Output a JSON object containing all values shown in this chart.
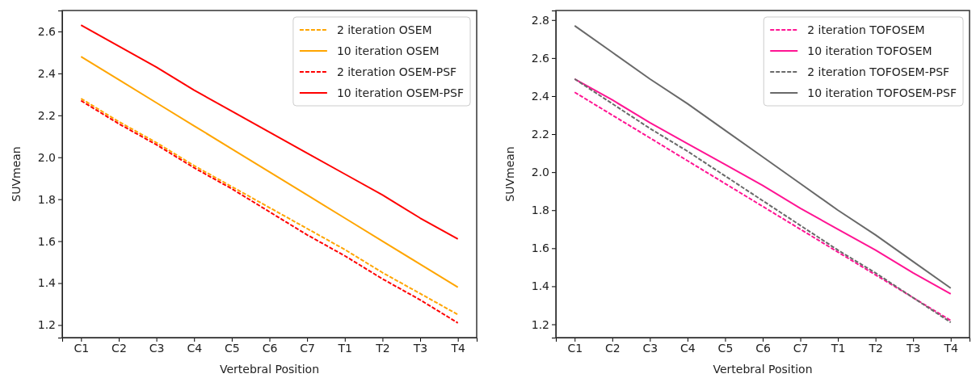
{
  "chart_data": [
    {
      "type": "line",
      "xlabel": "Vertebral Position",
      "ylabel": "SUVmean",
      "legend": "top right",
      "categories": [
        "C1",
        "C2",
        "C3",
        "C4",
        "C5",
        "C6",
        "C7",
        "T1",
        "T2",
        "T3",
        "T4"
      ],
      "ylim": [
        1.14,
        2.7
      ],
      "yticks": [
        1.2,
        1.4,
        1.6,
        1.8,
        {
          "value": 2,
          "label": "2.0"
        },
        2.2,
        2.4,
        2.6
      ],
      "series": [
        {
          "name": "2 iteration OSEM",
          "color": "#ffa500",
          "line_style": "dashed",
          "values": [
            2.28,
            2.17,
            2.07,
            1.96,
            1.86,
            1.76,
            1.66,
            1.56,
            1.45,
            1.35,
            1.25
          ]
        },
        {
          "name": "10 iteration OSEM",
          "color": "#ffa500",
          "line_style": "solid",
          "values": [
            2.48,
            2.37,
            2.26,
            2.15,
            2.04,
            1.93,
            1.82,
            1.71,
            1.6,
            1.49,
            1.38
          ]
        },
        {
          "name": "2 iteration OSEM-PSF",
          "color": "#ff0000",
          "line_style": "dashed",
          "values": [
            2.27,
            2.16,
            2.06,
            1.95,
            1.85,
            1.74,
            1.63,
            1.53,
            1.42,
            1.32,
            1.21
          ]
        },
        {
          "name": "10 iteration OSEM-PSF",
          "color": "#ff0000",
          "line_style": "solid",
          "values": [
            2.63,
            2.53,
            2.43,
            2.32,
            2.22,
            2.12,
            2.02,
            1.92,
            1.82,
            1.71,
            1.61
          ]
        }
      ]
    },
    {
      "type": "line",
      "xlabel": "Vertebral Position",
      "ylabel": "SUVmean",
      "legend": "top right",
      "categories": [
        "C1",
        "C2",
        "C3",
        "C4",
        "C5",
        "C6",
        "C7",
        "T1",
        "T2",
        "T3",
        "T4"
      ],
      "ylim": [
        1.13,
        2.85
      ],
      "yticks": [
        1.2,
        1.4,
        1.6,
        1.8,
        {
          "value": 2,
          "label": "2.0"
        },
        2.2,
        2.4,
        2.6,
        2.8
      ],
      "series": [
        {
          "name": "2 iteration TOFOSEM",
          "color": "#ff1493",
          "line_style": "dashed",
          "values": [
            2.42,
            2.3,
            2.18,
            2.06,
            1.94,
            1.82,
            1.7,
            1.58,
            1.46,
            1.34,
            1.22
          ]
        },
        {
          "name": "10 iteration TOFOSEM",
          "color": "#ff1493",
          "line_style": "solid",
          "values": [
            2.49,
            2.38,
            2.26,
            2.15,
            2.04,
            1.93,
            1.81,
            1.7,
            1.59,
            1.47,
            1.36
          ]
        },
        {
          "name": "2 iteration TOFOSEM-PSF",
          "color": "#696969",
          "line_style": "dashed",
          "values": [
            2.49,
            2.36,
            2.23,
            2.11,
            1.98,
            1.85,
            1.72,
            1.59,
            1.47,
            1.34,
            1.21
          ]
        },
        {
          "name": "10 iteration TOFOSEM-PSF",
          "color": "#696969",
          "line_style": "solid",
          "values": [
            2.77,
            2.63,
            2.49,
            2.36,
            2.22,
            2.08,
            1.94,
            1.8,
            1.67,
            1.53,
            1.39
          ]
        }
      ]
    }
  ]
}
